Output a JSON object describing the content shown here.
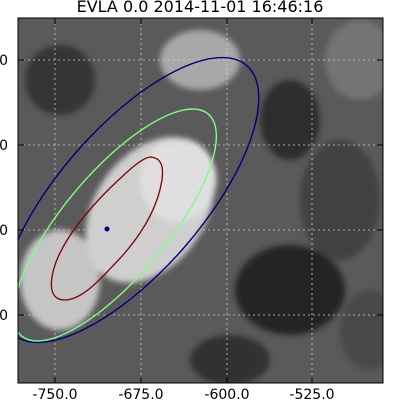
{
  "chart_data": {
    "type": "heatmap",
    "title": "EVLA  0.0 2014-11-01 16:46:16",
    "xlabel": "",
    "ylabel": "",
    "x_ticks": [
      -750.0,
      -675.0,
      -600.0,
      -525.0
    ],
    "x_tick_labels": [
      "-750.0",
      "-675.0",
      "-600.0",
      "-525.0"
    ],
    "y_tick_labels": [
      "0",
      "0",
      "0",
      "0"
    ],
    "xlim": [
      -756,
      -462
    ],
    "grid": true,
    "colormap": "gray",
    "contours": [
      {
        "color": "#00007f"
      },
      {
        "color": "#7fff7f"
      },
      {
        "color": "#7f0000"
      }
    ],
    "marker": {
      "color": "#00007f",
      "x": -707
    }
  }
}
